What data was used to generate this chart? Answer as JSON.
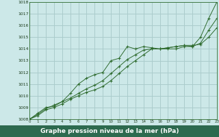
{
  "xlabel": "Graphe pression niveau de la mer (hPa)",
  "xlim": [
    0,
    23
  ],
  "ylim": [
    1008,
    1018
  ],
  "xticks": [
    0,
    1,
    2,
    3,
    4,
    5,
    6,
    7,
    8,
    9,
    10,
    11,
    12,
    13,
    14,
    15,
    16,
    17,
    18,
    19,
    20,
    21,
    22,
    23
  ],
  "yticks": [
    1008,
    1009,
    1010,
    1011,
    1012,
    1013,
    1014,
    1015,
    1016,
    1017,
    1018
  ],
  "bg_color": "#cce8e8",
  "grid_color": "#aacccc",
  "line_color": "#2d6a2d",
  "xlabel_bg": "#2d6a4f",
  "xlabel_color": "#ffffff",
  "series": [
    [
      1008.0,
      1008.5,
      1009.0,
      1009.1,
      1009.5,
      1010.2,
      1011.0,
      1011.5,
      1011.8,
      1012.0,
      1013.0,
      1013.2,
      1014.2,
      1014.0,
      1014.2,
      1014.1,
      1014.0,
      1014.1,
      1014.2,
      1014.3,
      1014.2,
      1015.0,
      1016.6,
      1018.0
    ],
    [
      1008.0,
      1008.4,
      1008.9,
      1009.2,
      1009.5,
      1009.8,
      1010.2,
      1010.6,
      1010.9,
      1011.3,
      1011.9,
      1012.5,
      1013.1,
      1013.5,
      1013.9,
      1014.0,
      1014.0,
      1014.0,
      1014.0,
      1014.2,
      1014.2,
      1014.5,
      1015.6,
      1016.6
    ],
    [
      1008.0,
      1008.3,
      1008.8,
      1009.0,
      1009.3,
      1009.7,
      1010.0,
      1010.3,
      1010.5,
      1010.8,
      1011.3,
      1011.9,
      1012.5,
      1013.0,
      1013.5,
      1014.0,
      1014.0,
      1014.1,
      1014.2,
      1014.3,
      1014.3,
      1014.4,
      1015.0,
      1015.8
    ]
  ]
}
